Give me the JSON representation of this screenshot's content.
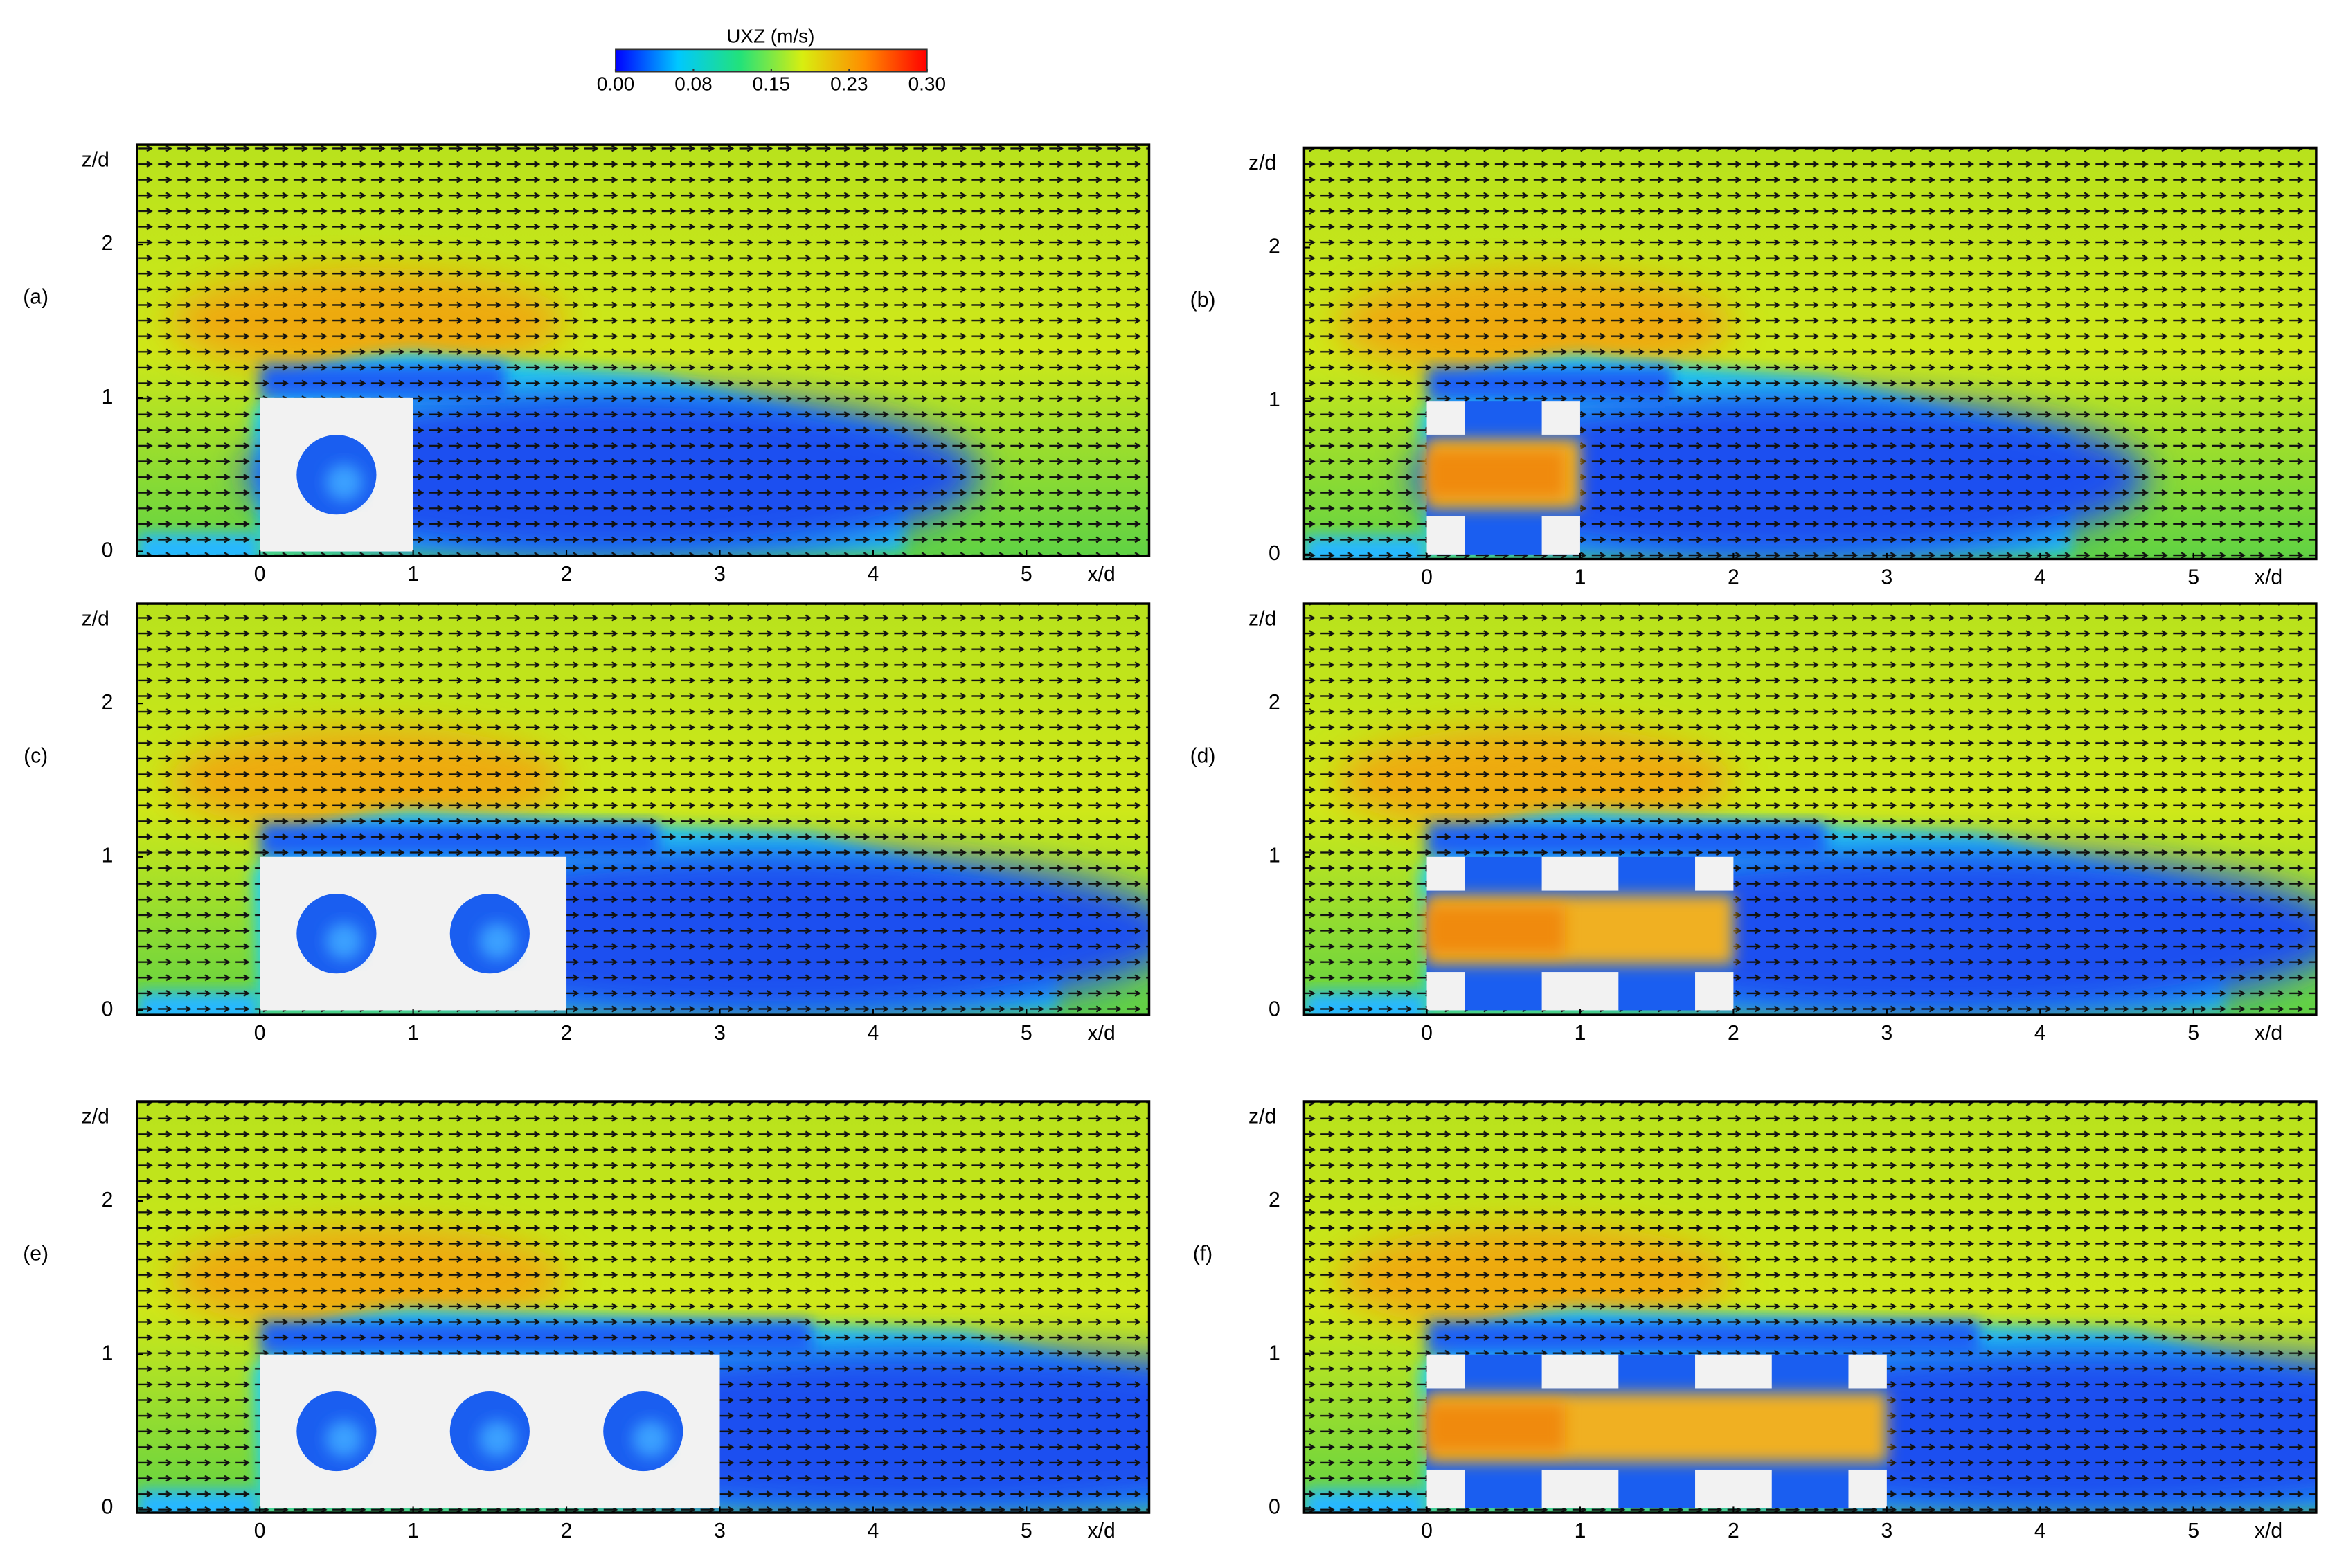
{
  "colorbar": {
    "title": "UXZ (m/s)",
    "lim": [
      0,
      0.3
    ],
    "colors": [
      "#0000ff",
      "#00c8ff",
      "#22e27a",
      "#d8ee10",
      "#ff8c00",
      "#ff0000"
    ],
    "ticks": [
      {
        "value": 0,
        "label": "0.00"
      },
      {
        "value": 0.075,
        "label": "0.08"
      },
      {
        "value": 0.15,
        "label": "0.15"
      },
      {
        "value": 0.225,
        "label": "0.23"
      },
      {
        "value": 0.3,
        "label": "0.30"
      }
    ]
  },
  "chart_data": [
    {
      "type": "field",
      "label": "(a)",
      "xlabel": "x/d",
      "ylabel": "z/d",
      "xlim": [
        -0.8,
        5.8
      ],
      "ylim": [
        -0.03,
        2.65
      ],
      "xticks": [
        0,
        1,
        2,
        3,
        4,
        5
      ],
      "yticks": [
        0,
        1,
        2
      ],
      "obstacle": [
        0,
        1
      ],
      "porous": false
    },
    {
      "type": "field",
      "label": "(b)",
      "xlabel": "x/d",
      "ylabel": "z/d",
      "xlim": [
        -0.8,
        5.8
      ],
      "ylim": [
        -0.03,
        2.65
      ],
      "xticks": [
        0,
        1,
        2,
        3,
        4,
        5
      ],
      "yticks": [
        0,
        1,
        2
      ],
      "obstacle": [
        0,
        1
      ],
      "porous": true
    },
    {
      "type": "field",
      "label": "(c)",
      "xlabel": "x/d",
      "ylabel": "z/d",
      "xlim": [
        -0.8,
        5.8
      ],
      "ylim": [
        -0.03,
        2.65
      ],
      "xticks": [
        0,
        1,
        2,
        3,
        4,
        5
      ],
      "yticks": [
        0,
        1,
        2
      ],
      "obstacle": [
        0,
        2
      ],
      "porous": false
    },
    {
      "type": "field",
      "label": "(d)",
      "xlabel": "x/d",
      "ylabel": "z/d",
      "xlim": [
        -0.8,
        5.8
      ],
      "ylim": [
        -0.03,
        2.65
      ],
      "xticks": [
        0,
        1,
        2,
        3,
        4,
        5
      ],
      "yticks": [
        0,
        1,
        2
      ],
      "obstacle": [
        0,
        2
      ],
      "porous": true
    },
    {
      "type": "field",
      "label": "(e)",
      "xlabel": "x/d",
      "ylabel": "z/d",
      "xlim": [
        -0.8,
        5.8
      ],
      "ylim": [
        -0.03,
        2.65
      ],
      "xticks": [
        0,
        1,
        2,
        3,
        4,
        5
      ],
      "yticks": [
        0,
        1,
        2
      ],
      "obstacle": [
        0,
        3
      ],
      "porous": false
    },
    {
      "type": "field",
      "label": "(f)",
      "xlabel": "x/d",
      "ylabel": "z/d",
      "xlim": [
        -0.8,
        5.8
      ],
      "ylim": [
        -0.03,
        2.65
      ],
      "xticks": [
        0,
        1,
        2,
        3,
        4,
        5
      ],
      "yticks": [
        0,
        1,
        2
      ],
      "obstacle": [
        0,
        3
      ],
      "porous": true
    }
  ]
}
